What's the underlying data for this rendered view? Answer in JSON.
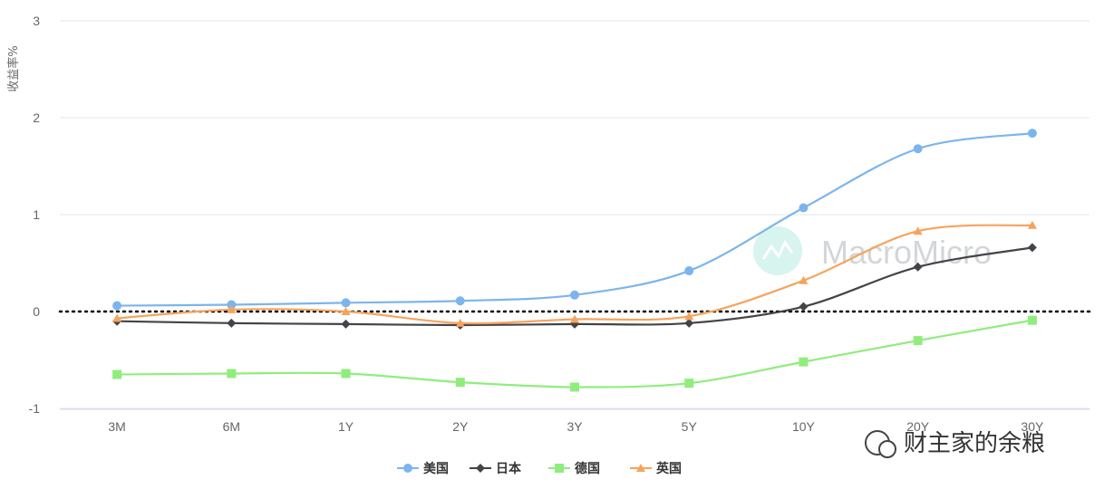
{
  "chart_data": {
    "type": "line",
    "ylabel": "收益率%",
    "xlabel": "",
    "title": "",
    "categories": [
      "3M",
      "6M",
      "1Y",
      "2Y",
      "3Y",
      "5Y",
      "10Y",
      "20Y",
      "30Y"
    ],
    "ylim": [
      -1,
      3
    ],
    "yticks": [
      -1,
      0,
      1,
      2,
      3
    ],
    "grid": true,
    "zero_line": "dotted",
    "legend_position": "bottom-center",
    "series": [
      {
        "name": "美国",
        "color": "#7cb5ec",
        "marker": "circle",
        "values": [
          0.06,
          0.07,
          0.09,
          0.11,
          0.17,
          0.42,
          1.07,
          1.68,
          1.84
        ]
      },
      {
        "name": "日本",
        "color": "#434348",
        "marker": "diamond",
        "values": [
          -0.1,
          -0.12,
          -0.13,
          -0.14,
          -0.13,
          -0.12,
          0.05,
          0.46,
          0.66
        ]
      },
      {
        "name": "德国",
        "color": "#90ed7d",
        "marker": "square",
        "values": [
          -0.65,
          -0.64,
          -0.64,
          -0.73,
          -0.78,
          -0.74,
          -0.52,
          -0.3,
          -0.09
        ]
      },
      {
        "name": "英国",
        "color": "#f7a35c",
        "marker": "triangle",
        "values": [
          -0.07,
          0.02,
          0.0,
          -0.12,
          -0.08,
          -0.05,
          0.32,
          0.83,
          0.89
        ]
      }
    ]
  },
  "watermark": {
    "text": "MacroMicro"
  },
  "footer": {
    "text": "财主家的余粮"
  }
}
